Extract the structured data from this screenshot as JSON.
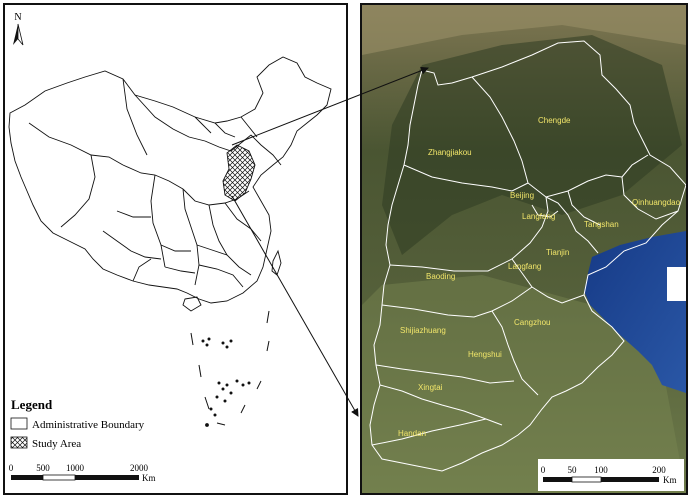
{
  "north_arrow": {
    "label": "N"
  },
  "legend": {
    "title": "Legend",
    "items": [
      {
        "label": "Administrative Boundary",
        "symbol": "empty-box"
      },
      {
        "label": "Study Area",
        "symbol": "crosshatch-box"
      }
    ]
  },
  "china_scalebar": {
    "ticks": [
      "0",
      "500",
      "1000",
      "2000"
    ],
    "unit": "Km"
  },
  "study_scalebar": {
    "ticks": [
      "0",
      "50",
      "100",
      "200"
    ],
    "unit": "Km"
  },
  "cities": [
    {
      "name": "Chengde"
    },
    {
      "name": "Zhangjiakou"
    },
    {
      "name": "Beijing"
    },
    {
      "name": "Langfang"
    },
    {
      "name": "Tangshan"
    },
    {
      "name": "Qinhuangdao"
    },
    {
      "name": "Tianjin"
    },
    {
      "name": "Langfang"
    },
    {
      "name": "Baoding"
    },
    {
      "name": "Cangzhou"
    },
    {
      "name": "Shijiazhuang"
    },
    {
      "name": "Hengshui"
    },
    {
      "name": "Xingtai"
    },
    {
      "name": "Handan"
    }
  ],
  "colors": {
    "boundary": "#111111",
    "sea": "#1b3f8f",
    "land_dark": "#3b4a2a",
    "land_light": "#8f8a62",
    "city_label": "#f2e66a",
    "white_boundary": "#ffffff"
  }
}
